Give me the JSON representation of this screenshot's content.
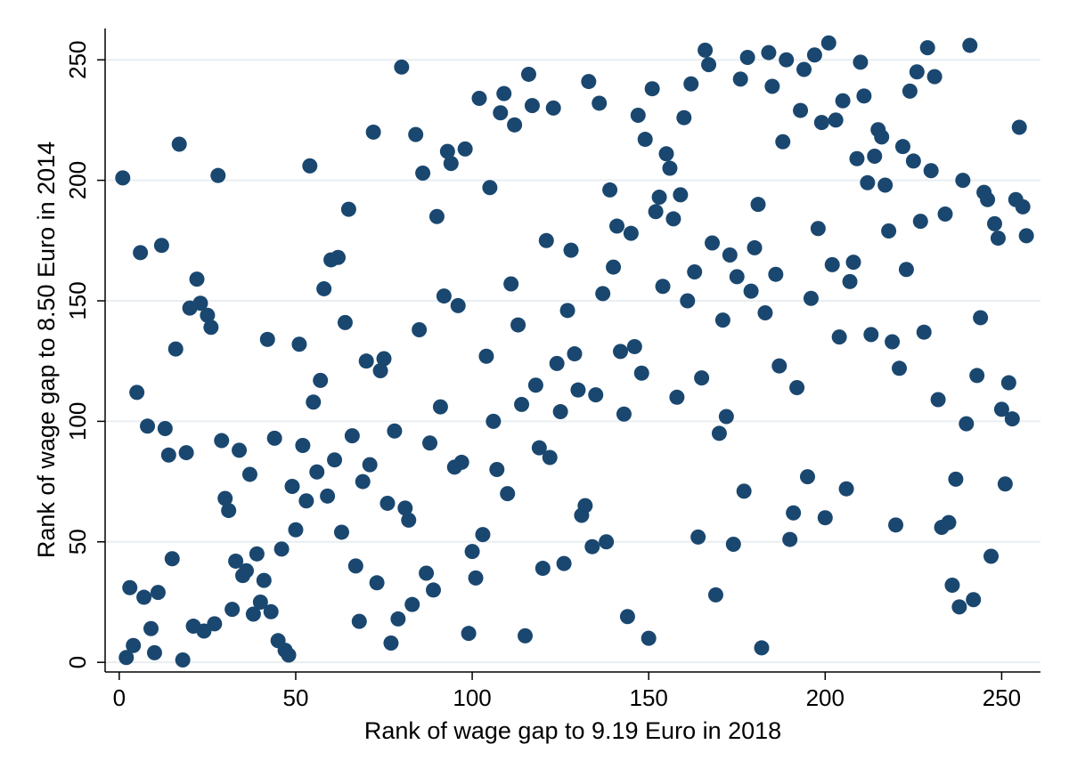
{
  "chart_data": {
    "type": "scatter",
    "title": "",
    "xlabel": "Rank of wage gap to 9.19 Euro in 2018",
    "ylabel": "Rank of wage gap to 8.50 Euro in 2014",
    "xlim": [
      -4,
      261
    ],
    "ylim": [
      -4,
      263
    ],
    "xticks": [
      0,
      50,
      100,
      150,
      200,
      250
    ],
    "yticks": [
      0,
      50,
      100,
      150,
      200,
      250
    ],
    "xtick_labels": [
      "0",
      "50",
      "100",
      "150",
      "200",
      "250"
    ],
    "ytick_labels": [
      "0",
      "50",
      "100",
      "150",
      "200",
      "250"
    ],
    "grid": "horizontal",
    "legend": "none",
    "colors": {
      "marker": "#1a476f",
      "grid": "#e8eef2",
      "axis": "#000000"
    },
    "points": [
      [
        1,
        201
      ],
      [
        2,
        2
      ],
      [
        3,
        31
      ],
      [
        4,
        7
      ],
      [
        5,
        112
      ],
      [
        6,
        170
      ],
      [
        7,
        27
      ],
      [
        8,
        98
      ],
      [
        9,
        14
      ],
      [
        10,
        4
      ],
      [
        11,
        29
      ],
      [
        12,
        173
      ],
      [
        13,
        97
      ],
      [
        14,
        86
      ],
      [
        15,
        43
      ],
      [
        16,
        130
      ],
      [
        17,
        215
      ],
      [
        18,
        1
      ],
      [
        19,
        87
      ],
      [
        20,
        147
      ],
      [
        21,
        15
      ],
      [
        22,
        159
      ],
      [
        23,
        149
      ],
      [
        24,
        13
      ],
      [
        25,
        144
      ],
      [
        26,
        139
      ],
      [
        27,
        16
      ],
      [
        28,
        202
      ],
      [
        29,
        92
      ],
      [
        30,
        68
      ],
      [
        31,
        63
      ],
      [
        32,
        22
      ],
      [
        33,
        42
      ],
      [
        34,
        88
      ],
      [
        35,
        36
      ],
      [
        36,
        38
      ],
      [
        37,
        78
      ],
      [
        38,
        20
      ],
      [
        39,
        45
      ],
      [
        40,
        25
      ],
      [
        41,
        34
      ],
      [
        42,
        134
      ],
      [
        43,
        21
      ],
      [
        44,
        93
      ],
      [
        45,
        9
      ],
      [
        46,
        47
      ],
      [
        47,
        5
      ],
      [
        48,
        3
      ],
      [
        49,
        73
      ],
      [
        50,
        55
      ],
      [
        51,
        132
      ],
      [
        52,
        90
      ],
      [
        53,
        67
      ],
      [
        54,
        206
      ],
      [
        55,
        108
      ],
      [
        56,
        79
      ],
      [
        57,
        117
      ],
      [
        58,
        155
      ],
      [
        59,
        69
      ],
      [
        60,
        167
      ],
      [
        61,
        84
      ],
      [
        62,
        168
      ],
      [
        63,
        54
      ],
      [
        64,
        141
      ],
      [
        65,
        188
      ],
      [
        66,
        94
      ],
      [
        67,
        40
      ],
      [
        68,
        17
      ],
      [
        69,
        75
      ],
      [
        70,
        125
      ],
      [
        71,
        82
      ],
      [
        72,
        220
      ],
      [
        73,
        33
      ],
      [
        74,
        121
      ],
      [
        75,
        126
      ],
      [
        76,
        66
      ],
      [
        77,
        8
      ],
      [
        78,
        96
      ],
      [
        79,
        18
      ],
      [
        80,
        247
      ],
      [
        81,
        64
      ],
      [
        82,
        59
      ],
      [
        83,
        24
      ],
      [
        84,
        219
      ],
      [
        85,
        138
      ],
      [
        86,
        203
      ],
      [
        87,
        37
      ],
      [
        88,
        91
      ],
      [
        89,
        30
      ],
      [
        90,
        185
      ],
      [
        91,
        106
      ],
      [
        92,
        152
      ],
      [
        93,
        212
      ],
      [
        94,
        207
      ],
      [
        95,
        81
      ],
      [
        96,
        148
      ],
      [
        97,
        83
      ],
      [
        98,
        213
      ],
      [
        99,
        12
      ],
      [
        100,
        46
      ],
      [
        101,
        35
      ],
      [
        102,
        234
      ],
      [
        103,
        53
      ],
      [
        104,
        127
      ],
      [
        105,
        197
      ],
      [
        106,
        100
      ],
      [
        107,
        80
      ],
      [
        108,
        228
      ],
      [
        109,
        236
      ],
      [
        110,
        70
      ],
      [
        111,
        157
      ],
      [
        112,
        223
      ],
      [
        113,
        140
      ],
      [
        114,
        107
      ],
      [
        115,
        11
      ],
      [
        116,
        244
      ],
      [
        117,
        231
      ],
      [
        118,
        115
      ],
      [
        119,
        89
      ],
      [
        120,
        39
      ],
      [
        121,
        175
      ],
      [
        122,
        85
      ],
      [
        123,
        230
      ],
      [
        124,
        124
      ],
      [
        125,
        104
      ],
      [
        126,
        41
      ],
      [
        127,
        146
      ],
      [
        128,
        171
      ],
      [
        129,
        128
      ],
      [
        130,
        113
      ],
      [
        131,
        61
      ],
      [
        132,
        65
      ],
      [
        133,
        241
      ],
      [
        134,
        48
      ],
      [
        135,
        111
      ],
      [
        136,
        232
      ],
      [
        137,
        153
      ],
      [
        138,
        50
      ],
      [
        139,
        196
      ],
      [
        140,
        164
      ],
      [
        141,
        181
      ],
      [
        142,
        129
      ],
      [
        143,
        103
      ],
      [
        144,
        19
      ],
      [
        145,
        178
      ],
      [
        146,
        131
      ],
      [
        147,
        227
      ],
      [
        148,
        120
      ],
      [
        149,
        217
      ],
      [
        150,
        10
      ],
      [
        151,
        238
      ],
      [
        152,
        187
      ],
      [
        153,
        193
      ],
      [
        154,
        156
      ],
      [
        155,
        211
      ],
      [
        156,
        205
      ],
      [
        157,
        184
      ],
      [
        158,
        110
      ],
      [
        159,
        194
      ],
      [
        160,
        226
      ],
      [
        161,
        150
      ],
      [
        162,
        240
      ],
      [
        163,
        162
      ],
      [
        164,
        52
      ],
      [
        165,
        118
      ],
      [
        166,
        254
      ],
      [
        167,
        248
      ],
      [
        168,
        174
      ],
      [
        169,
        28
      ],
      [
        170,
        95
      ],
      [
        171,
        142
      ],
      [
        172,
        102
      ],
      [
        173,
        169
      ],
      [
        174,
        49
      ],
      [
        175,
        160
      ],
      [
        176,
        242
      ],
      [
        177,
        71
      ],
      [
        178,
        251
      ],
      [
        179,
        154
      ],
      [
        180,
        172
      ],
      [
        181,
        190
      ],
      [
        182,
        6
      ],
      [
        183,
        145
      ],
      [
        184,
        253
      ],
      [
        185,
        239
      ],
      [
        186,
        161
      ],
      [
        187,
        123
      ],
      [
        188,
        216
      ],
      [
        189,
        250
      ],
      [
        190,
        51
      ],
      [
        191,
        62
      ],
      [
        192,
        114
      ],
      [
        193,
        229
      ],
      [
        194,
        246
      ],
      [
        195,
        77
      ],
      [
        196,
        151
      ],
      [
        197,
        252
      ],
      [
        198,
        180
      ],
      [
        199,
        224
      ],
      [
        200,
        60
      ],
      [
        201,
        257
      ],
      [
        202,
        165
      ],
      [
        203,
        225
      ],
      [
        204,
        135
      ],
      [
        205,
        233
      ],
      [
        206,
        72
      ],
      [
        207,
        158
      ],
      [
        208,
        166
      ],
      [
        209,
        209
      ],
      [
        210,
        249
      ],
      [
        211,
        235
      ],
      [
        212,
        199
      ],
      [
        213,
        136
      ],
      [
        214,
        210
      ],
      [
        215,
        221
      ],
      [
        216,
        218
      ],
      [
        217,
        198
      ],
      [
        218,
        179
      ],
      [
        219,
        133
      ],
      [
        220,
        57
      ],
      [
        221,
        122
      ],
      [
        222,
        214
      ],
      [
        223,
        163
      ],
      [
        224,
        237
      ],
      [
        225,
        208
      ],
      [
        226,
        245
      ],
      [
        227,
        183
      ],
      [
        228,
        137
      ],
      [
        229,
        255
      ],
      [
        230,
        204
      ],
      [
        231,
        243
      ],
      [
        232,
        109
      ],
      [
        233,
        56
      ],
      [
        234,
        186
      ],
      [
        235,
        58
      ],
      [
        236,
        32
      ],
      [
        237,
        76
      ],
      [
        238,
        23
      ],
      [
        239,
        200
      ],
      [
        240,
        99
      ],
      [
        241,
        256
      ],
      [
        242,
        26
      ],
      [
        243,
        119
      ],
      [
        244,
        143
      ],
      [
        245,
        195
      ],
      [
        246,
        192
      ],
      [
        247,
        44
      ],
      [
        248,
        182
      ],
      [
        249,
        176
      ],
      [
        250,
        105
      ],
      [
        251,
        74
      ],
      [
        252,
        116
      ],
      [
        253,
        101
      ],
      [
        254,
        192
      ],
      [
        255,
        222
      ],
      [
        256,
        189
      ],
      [
        257,
        177
      ]
    ]
  }
}
